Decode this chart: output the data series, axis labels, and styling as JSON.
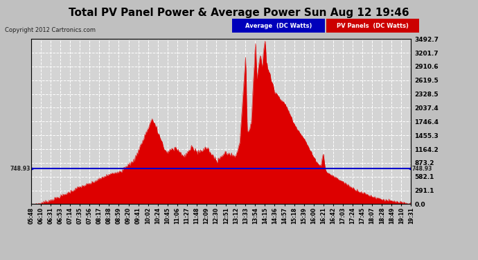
{
  "title": "Total PV Panel Power & Average Power Sun Aug 12 19:46",
  "copyright": "Copyright 2012 Cartronics.com",
  "average_value": 748.93,
  "y_max": 3492.7,
  "y_min": 0.0,
  "yticks": [
    0.0,
    291.1,
    582.1,
    873.2,
    1164.2,
    1455.3,
    1746.4,
    2037.4,
    2328.5,
    2619.5,
    2910.6,
    3201.7,
    3492.7
  ],
  "bg_color": "#c0c0c0",
  "plot_bg_color": "#d4d4d4",
  "fill_color": "#dd0000",
  "avg_line_color": "#0000cc",
  "avg_label_bg": "#0000bb",
  "pv_label_bg": "#cc0000",
  "title_color": "#000000",
  "grid_color": "#ffffff",
  "x_labels": [
    "05:48",
    "06:10",
    "06:31",
    "06:53",
    "07:14",
    "07:35",
    "07:56",
    "08:17",
    "08:38",
    "08:59",
    "09:20",
    "09:41",
    "10:02",
    "10:24",
    "10:45",
    "11:06",
    "11:27",
    "11:48",
    "12:09",
    "12:30",
    "12:51",
    "13:12",
    "13:33",
    "13:54",
    "14:15",
    "14:36",
    "14:57",
    "15:18",
    "15:39",
    "16:00",
    "16:21",
    "16:42",
    "17:03",
    "17:24",
    "17:45",
    "18:07",
    "18:28",
    "18:49",
    "19:10",
    "19:31"
  ]
}
